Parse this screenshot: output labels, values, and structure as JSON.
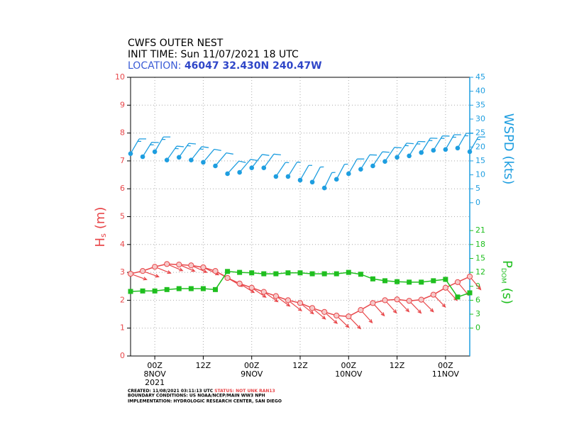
{
  "chart_data": {
    "type": "line",
    "title": "CWFS OUTER NEST",
    "subtitle": "INIT TIME: Sun 11/07/2021 18 UTC",
    "location": {
      "label": "LOCATION:",
      "station": "46047 32.430N 240.47W"
    },
    "x": [
      0,
      3,
      6,
      9,
      12,
      15,
      18,
      21,
      24,
      27,
      30,
      33,
      36,
      39,
      42,
      45,
      48,
      51,
      54,
      57,
      60,
      63,
      66,
      69,
      72,
      75,
      78,
      81,
      84
    ],
    "xlim": [
      0,
      84
    ],
    "xticks": [
      {
        "value": 6,
        "label": "00Z",
        "date": "8NOV",
        "year": "2021"
      },
      {
        "value": 18,
        "label": "12Z"
      },
      {
        "value": 30,
        "label": "00Z",
        "date": "9NOV"
      },
      {
        "value": 42,
        "label": "12Z"
      },
      {
        "value": 54,
        "label": "00Z",
        "date": "10NOV"
      },
      {
        "value": 66,
        "label": "12Z"
      },
      {
        "value": 78,
        "label": "00Z",
        "date": "11NOV"
      }
    ],
    "ylim": [
      0,
      10
    ],
    "yticks": [
      0,
      1,
      2,
      3,
      4,
      5,
      6,
      7,
      8,
      9,
      10
    ],
    "ylabel": {
      "text": "H",
      "sub": "s",
      "unit": "(m)",
      "color": "#e8474a"
    },
    "y2lim": [
      -6,
      54
    ],
    "y2ticks": [
      0,
      3,
      6,
      9,
      12,
      15,
      18,
      21
    ],
    "y2label": {
      "text": "P",
      "sub": "DOM",
      "unit": "(s)",
      "color": "#1fbf1f"
    },
    "y3lim": [
      -55,
      45
    ],
    "y3ticks": [
      0,
      5,
      10,
      15,
      20,
      25,
      30,
      35,
      40,
      45
    ],
    "y3label": {
      "text": "WSPD (kts)",
      "color": "#1e9ee0"
    },
    "grid": true,
    "series": [
      {
        "color": "#e8474a",
        "axis": "y",
        "values": [
          2.95,
          3.05,
          3.2,
          3.3,
          3.28,
          3.25,
          3.18,
          3.05,
          2.8,
          2.6,
          2.45,
          2.3,
          2.15,
          2.0,
          1.9,
          1.72,
          1.58,
          1.45,
          1.42,
          1.65,
          1.9,
          2.0,
          2.03,
          1.98,
          2.02,
          2.2,
          2.45,
          2.65,
          2.85
        ],
        "directions": [
          290,
          290,
          292,
          293,
          293,
          294,
          296,
          298,
          300,
          302,
          304,
          305,
          306,
          308,
          309,
          310,
          312,
          314,
          316,
          318,
          318,
          318,
          316,
          316,
          315,
          316,
          318,
          320,
          320
        ]
      },
      {
        "color": "#1fbf1f",
        "axis": "y2",
        "values": [
          7.9,
          8,
          8,
          8.3,
          8.5,
          8.5,
          8.5,
          8.3,
          12.2,
          12,
          11.9,
          11.7,
          11.7,
          11.9,
          11.9,
          11.7,
          11.7,
          11.7,
          12,
          11.6,
          10.6,
          10.2,
          10,
          9.9,
          9.9,
          10.2,
          10.5,
          6.7,
          7.6
        ]
      },
      {
        "color": "#1e9ee0",
        "axis": "y3",
        "values": [
          17.6,
          16.5,
          18.3,
          15.3,
          16.3,
          15.3,
          14.5,
          13.2,
          10.4,
          10.9,
          12.5,
          12.5,
          9.4,
          9.4,
          8.1,
          7.4,
          5.3,
          8.4,
          10.4,
          12,
          13.2,
          14.8,
          16.3,
          16.8,
          18,
          18.8,
          19.1,
          19.6,
          18.3
        ],
        "directions": [
          30,
          32,
          30,
          35,
          35,
          38,
          40,
          40,
          42,
          40,
          38,
          36,
          34,
          32,
          30,
          28,
          26,
          28,
          30,
          32,
          34,
          34,
          34,
          32,
          32,
          32,
          30,
          30,
          30
        ]
      }
    ],
    "footer": {
      "created": "CREATED: 11/08/2021 03:11:13 UTC",
      "status": "STATUS: NOT UNK RAN13",
      "boundary": "BOUNDARY CONDITIONS: US NOAA/NCEP/MAIN WW3 NPH",
      "implementation": "IMPLEMENTATION: HYDROLOGIC RESEARCH CENTER, SAN DIEGO"
    }
  }
}
